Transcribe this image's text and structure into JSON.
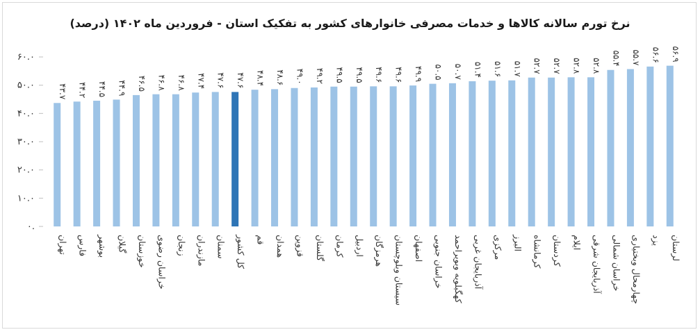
{
  "chart_data": {
    "type": "bar",
    "title": "نرخ تورم سالانه کالاها و خدمات مصرفی خانوارهای کشور به تفکیک استان - فروردین ماه ۱۴۰۲ (درصد)",
    "xlabel": "",
    "ylabel": "",
    "ylim": [
      0,
      60
    ],
    "yticks": [
      "۰.",
      "۱۰.۰",
      "۲۰.۰",
      "۳۰.۰",
      "۴۰.۰",
      "۵۰.۰",
      "۶۰.۰"
    ],
    "ytick_values": [
      0,
      10,
      20,
      30,
      40,
      50,
      60
    ],
    "grid": false,
    "legend": "none",
    "colors": {
      "bar": "#9dc3e6",
      "highlight": "#2e75b6"
    },
    "highlight_category": "کل کشور",
    "categories": [
      "تهران",
      "فارس",
      "بوشهر",
      "گیلان",
      "خوزستان",
      "خراسان رضوی",
      "زنجان",
      "مازندران",
      "سمنان",
      "کل کشور",
      "قم",
      "همدان",
      "قزوین",
      "گلستان",
      "کرمان",
      "اردبیل",
      "هرمزگان",
      "سیستان وبلوچستان",
      "اصفهان",
      "خراسان جنوبی",
      "کهگیلویه وبویراحمد",
      "آذربایجان غربی",
      "مرکزی",
      "البرز",
      "کرمانشاه",
      "کردستان",
      "ایلام",
      "آذربایجان شرقی",
      "خراسان شمالی",
      "چهارمحال وبختیاری",
      "یزد",
      "لرستان"
    ],
    "values": [
      43.7,
      44.2,
      44.5,
      44.9,
      46.5,
      46.8,
      46.8,
      47.4,
      47.6,
      47.6,
      48.4,
      48.6,
      49.0,
      49.2,
      49.5,
      49.5,
      49.6,
      49.6,
      49.9,
      50.5,
      50.7,
      51.4,
      51.6,
      51.7,
      52.7,
      52.7,
      52.8,
      52.8,
      55.4,
      55.7,
      56.6,
      56.9
    ],
    "value_labels": [
      "۴۳.۷",
      "۴۴.۲",
      "۴۴.۵",
      "۴۴.۹",
      "۴۶.۵",
      "۴۶.۸",
      "۴۶.۸",
      "۴۷.۴",
      "۴۷.۶",
      "۴۷.۶",
      "۴۸.۴",
      "۴۸.۶",
      "۴۹.۰",
      "۴۹.۲",
      "۴۹.۵",
      "۴۹.۵",
      "۴۹.۶",
      "۴۹.۶",
      "۴۹.۹",
      "۵۰.۵",
      "۵۰.۷",
      "۵۱.۴",
      "۵۱.۶",
      "۵۱.۷",
      "۵۲.۷",
      "۵۲.۷",
      "۵۲.۸",
      "۵۲.۸",
      "۵۵.۴",
      "۵۵.۷",
      "۵۶.۶",
      "۵۶.۹"
    ]
  }
}
